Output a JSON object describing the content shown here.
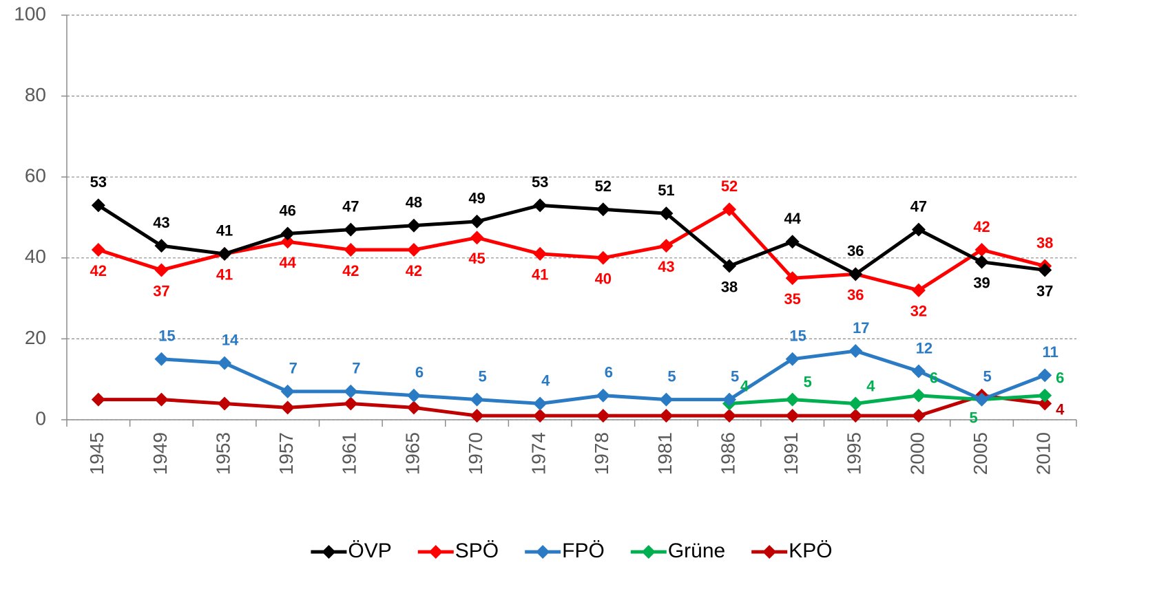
{
  "chart_data": {
    "type": "line",
    "categories": [
      "1945",
      "1949",
      "1953",
      "1957",
      "1961",
      "1965",
      "1970",
      "1974",
      "1978",
      "1981",
      "1986",
      "1991",
      "1995",
      "2000",
      "2005",
      "2010"
    ],
    "series": [
      {
        "name": "ÖVP",
        "color": "#000000",
        "values": [
          53,
          43,
          41,
          46,
          47,
          48,
          49,
          53,
          52,
          51,
          38,
          44,
          36,
          47,
          39,
          37
        ]
      },
      {
        "name": "SPÖ",
        "color": "#ff0000",
        "values": [
          42,
          37,
          41,
          44,
          42,
          42,
          45,
          41,
          40,
          43,
          52,
          35,
          36,
          32,
          42,
          38
        ]
      },
      {
        "name": "FPÖ",
        "color": "#2a7ac4",
        "values": [
          null,
          15,
          14,
          7,
          7,
          6,
          5,
          4,
          6,
          5,
          5,
          15,
          17,
          12,
          5,
          11
        ]
      },
      {
        "name": "Grüne",
        "color": "#00b050",
        "values": [
          null,
          null,
          null,
          null,
          null,
          null,
          null,
          null,
          null,
          null,
          4,
          5,
          4,
          6,
          5,
          6
        ]
      },
      {
        "name": "KPÖ",
        "color": "#c00000",
        "values": [
          5,
          5,
          4,
          3,
          4,
          3,
          1,
          1,
          1,
          1,
          1,
          1,
          1,
          1,
          6,
          4
        ],
        "value_labels": [
          null,
          null,
          null,
          null,
          null,
          null,
          null,
          null,
          null,
          null,
          null,
          null,
          null,
          null,
          null,
          "4"
        ]
      }
    ],
    "ylim": [
      0,
      100
    ],
    "yticks": [
      0,
      20,
      40,
      60,
      80,
      100
    ],
    "grid": true,
    "legend": "bottom"
  }
}
